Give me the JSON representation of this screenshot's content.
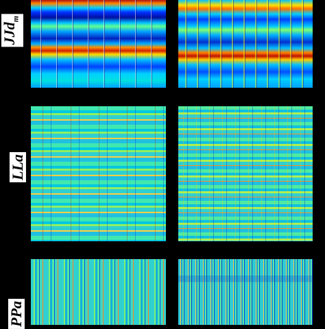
{
  "row_labels": [
    {
      "text": "JJd",
      "subscript": "m"
    },
    {
      "text": "LLa"
    },
    {
      "text": "PPa"
    }
  ]
}
